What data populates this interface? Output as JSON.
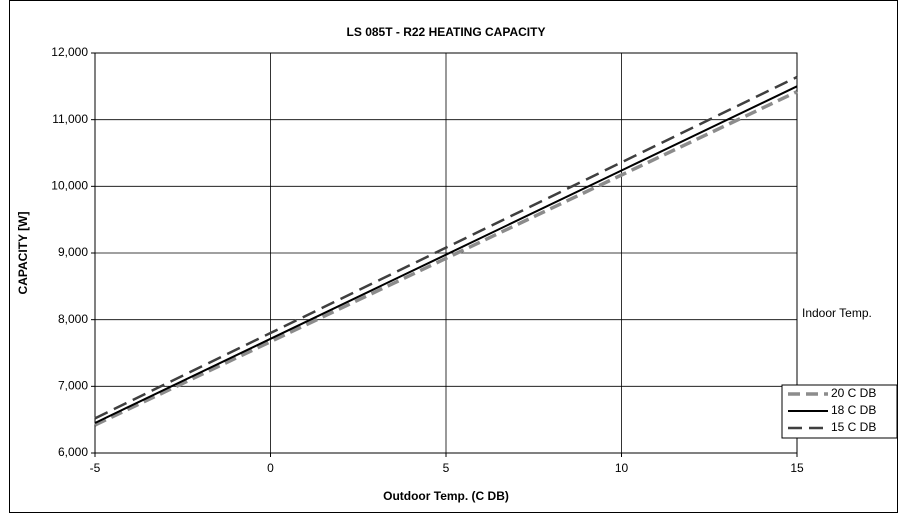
{
  "chart_data": {
    "type": "line",
    "title": "LS 085T - R22  HEATING CAPACITY",
    "xlabel": "Outdoor Temp. (C DB)",
    "ylabel": "CAPACITY [W]",
    "legend_title": "Indoor Temp.",
    "x": [
      -5,
      0,
      5,
      10,
      15
    ],
    "series": [
      {
        "name": "20 C DB",
        "color": "#8c8c8c",
        "values": [
          6420,
          7670,
          8920,
          10170,
          11420
        ]
      },
      {
        "name": "18 C DB",
        "color": "#000000",
        "values": [
          6450,
          7713,
          8975,
          10238,
          11500
        ]
      },
      {
        "name": "15 C DB",
        "color": "#3f3f3f",
        "values": [
          6520,
          7800,
          9080,
          10360,
          11640
        ]
      }
    ],
    "xlim": [
      -5,
      15
    ],
    "xticks": [
      -5,
      0,
      5,
      10,
      15
    ],
    "ylim": [
      6000,
      12000
    ],
    "yticks": [
      {
        "value": 6000,
        "label": "6,000"
      },
      {
        "value": 7000,
        "label": "7,000"
      },
      {
        "value": 8000,
        "label": "8,000"
      },
      {
        "value": 9000,
        "label": "9,000"
      },
      {
        "value": 10000,
        "label": "10,000"
      },
      {
        "value": 11000,
        "label": "11,000"
      },
      {
        "value": 12000,
        "label": "12,000"
      }
    ],
    "grid": true,
    "legend": "right"
  }
}
